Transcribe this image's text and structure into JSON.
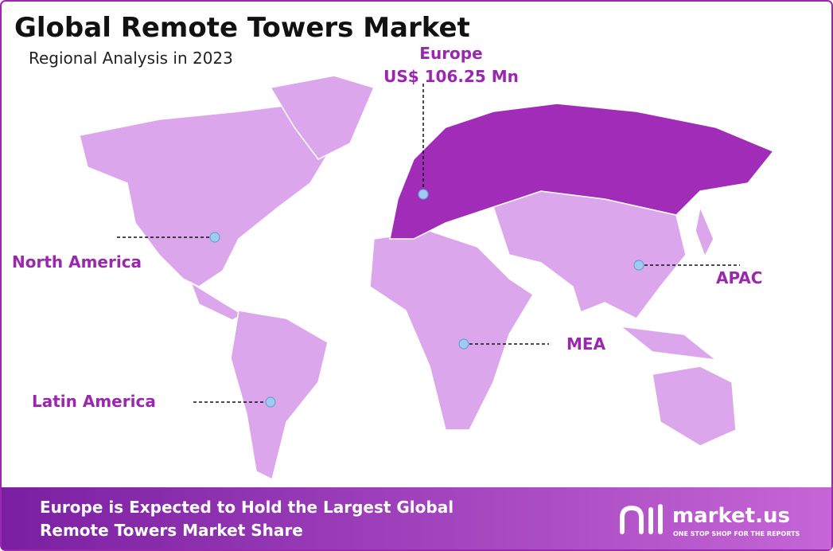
{
  "header": {
    "title": "Global Remote Towers Market",
    "subtitle": "Regional Analysis in 2023"
  },
  "regions": [
    {
      "label": "Europe",
      "value_label": "US$ 106.25 Mn"
    },
    {
      "label": "North America"
    },
    {
      "label": "APAC"
    },
    {
      "label": "MEA"
    },
    {
      "label": "Latin America"
    }
  ],
  "footer": {
    "text_lines": [
      "Europe is Expected to Hold the Largest Global",
      "Remote Towers Market Share"
    ],
    "brand": "market.us",
    "tagline": "ONE STOP SHOP FOR THE REPORTS"
  }
}
